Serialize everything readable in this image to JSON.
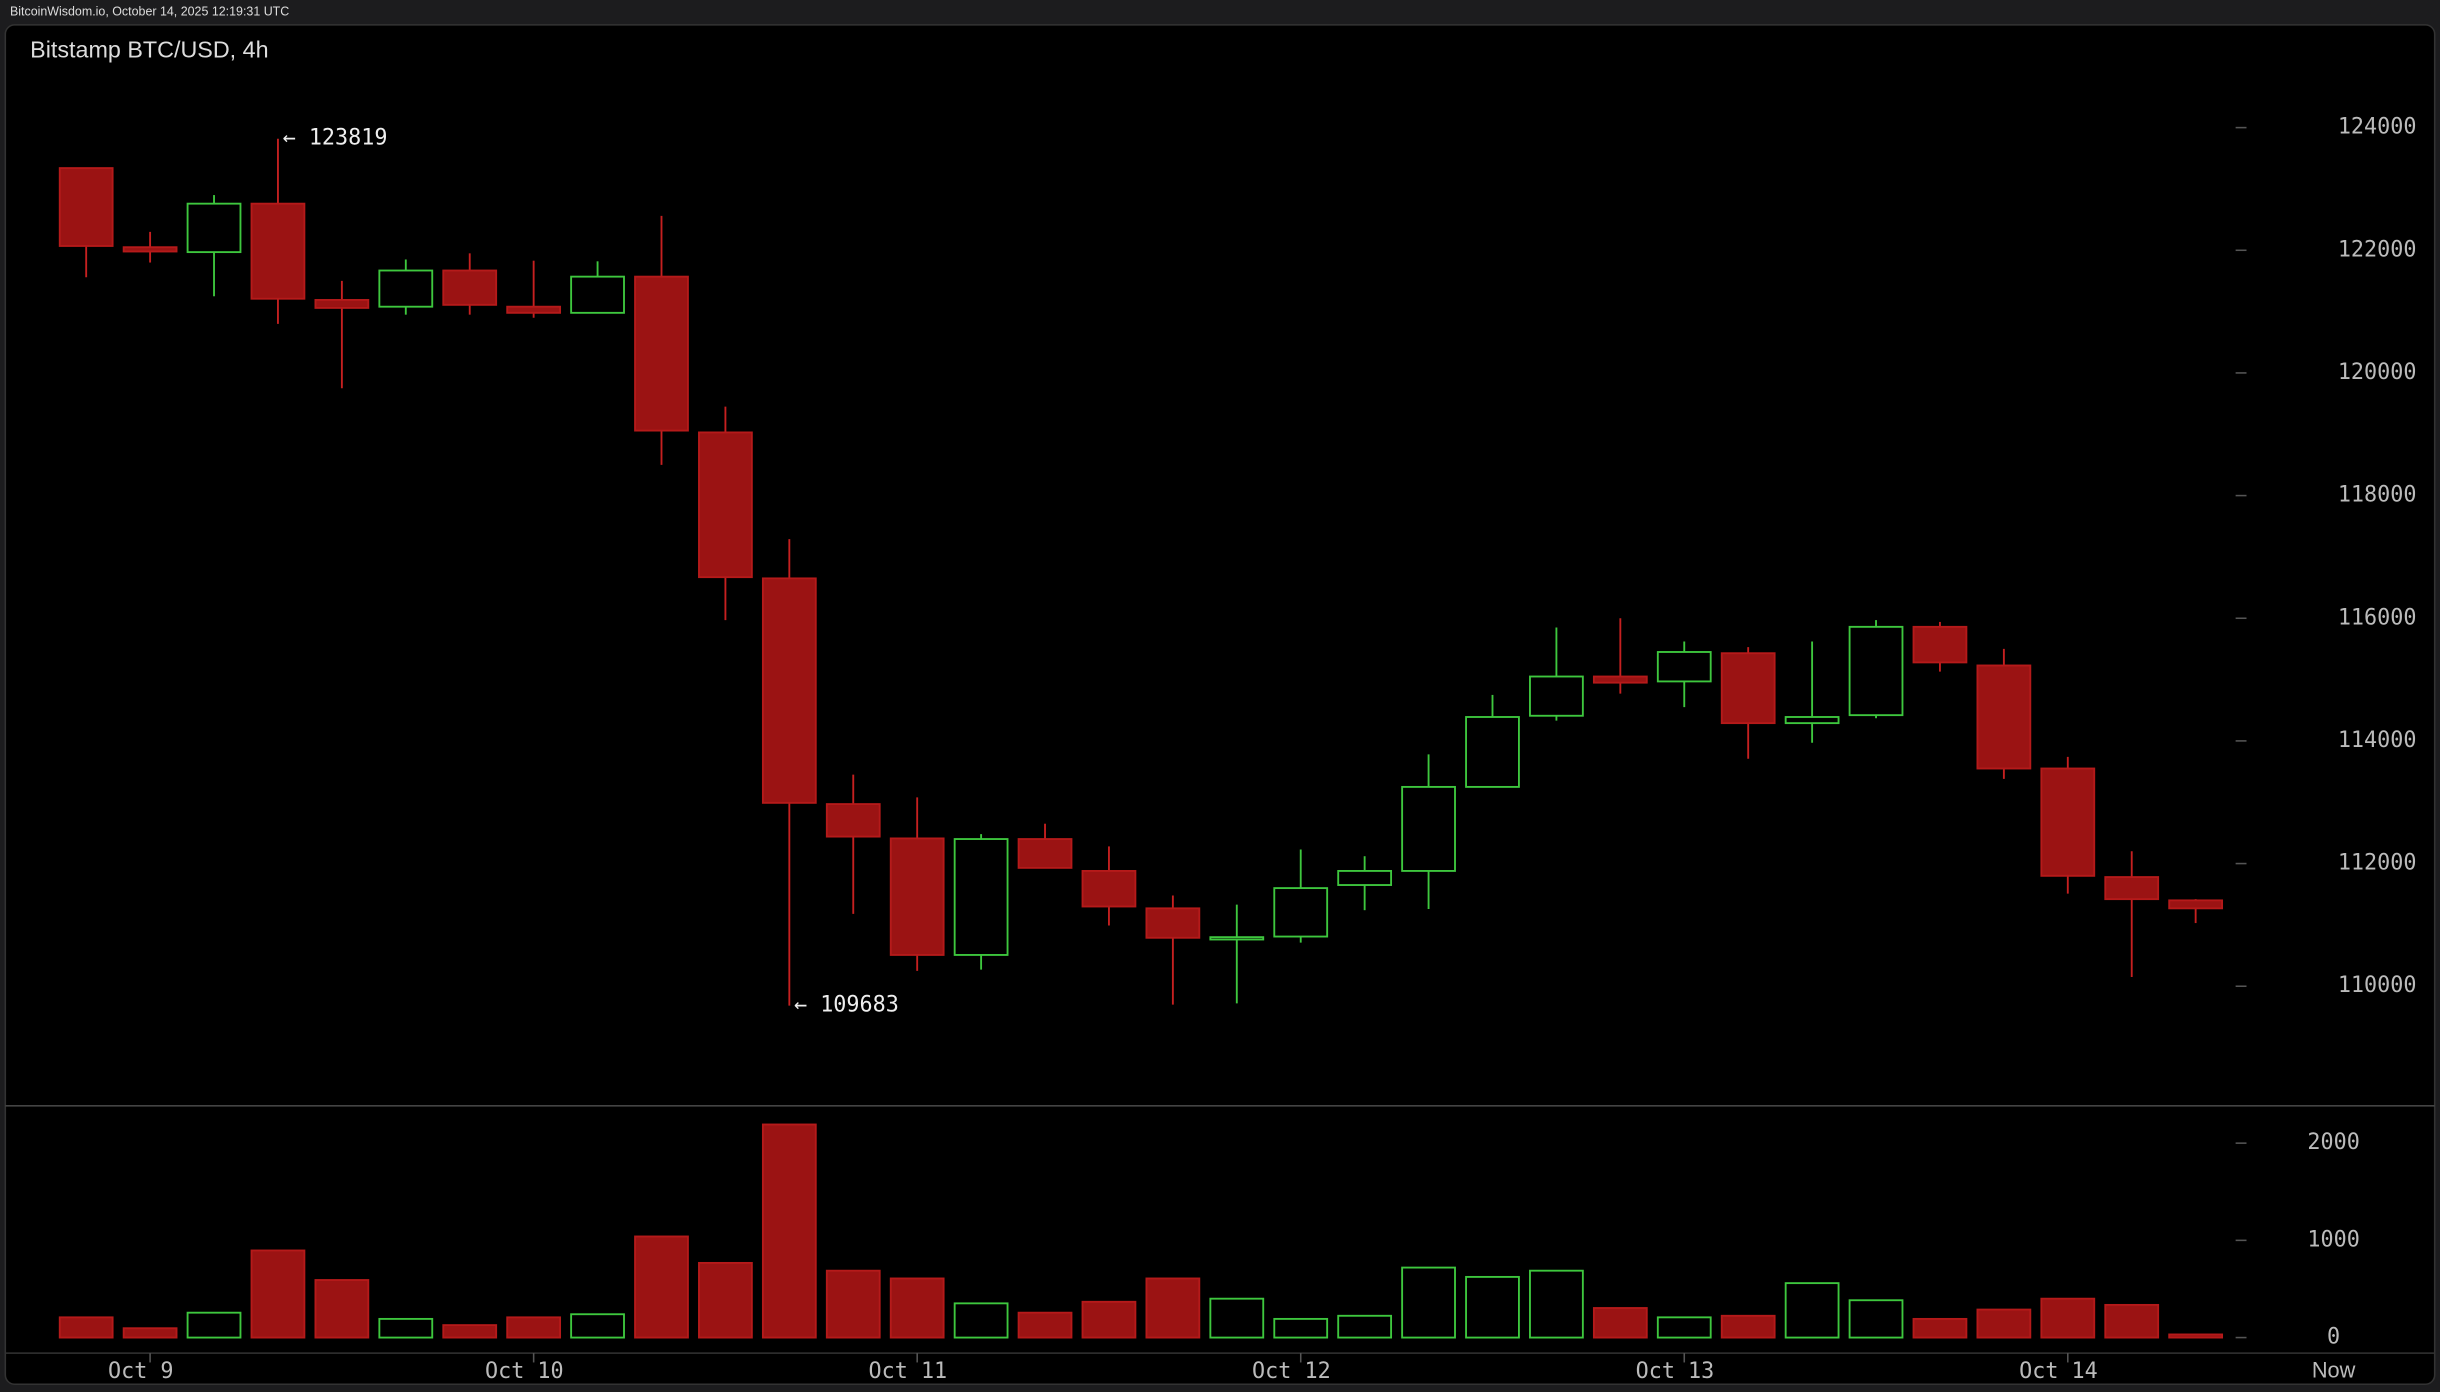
{
  "header": "BitcoinWisdom.io, October 14, 2025 12:19:31 UTC",
  "chart_data": {
    "type": "candlestick",
    "title": "Bitstamp BTC/USD, 4h",
    "categories": [
      null,
      "Oct 9",
      null,
      null,
      null,
      null,
      null,
      "Oct 10",
      null,
      null,
      null,
      null,
      null,
      "Oct 11",
      null,
      null,
      null,
      null,
      null,
      "Oct 12",
      null,
      null,
      null,
      null,
      null,
      "Oct 13",
      null,
      null,
      null,
      null,
      null,
      "Oct 14",
      null,
      null
    ],
    "end_label": "Now",
    "open": [
      123340,
      122050,
      121970,
      122760,
      121190,
      121080,
      121670,
      121080,
      120980,
      121570,
      119030,
      116650,
      112970,
      112410,
      110510,
      112400,
      111880,
      111270,
      110790,
      110810,
      111650,
      111880,
      113250,
      114410,
      115050,
      114970,
      115430,
      114290,
      114420,
      115860,
      115230,
      113550,
      111780,
      111400
    ],
    "high": [
      123340,
      122300,
      122900,
      123819,
      121500,
      121850,
      121950,
      121830,
      121820,
      122560,
      119450,
      117290,
      113450,
      113080,
      112480,
      112650,
      112280,
      111480,
      111330,
      112230,
      112120,
      113780,
      114750,
      115850,
      116000,
      115620,
      115530,
      115620,
      115970,
      115940,
      115500,
      113740,
      112200,
      111420
    ],
    "low": [
      121560,
      121800,
      121250,
      120800,
      119750,
      120950,
      120950,
      120900,
      120980,
      118500,
      115970,
      109683,
      111180,
      110250,
      110270,
      111930,
      110990,
      109700,
      109720,
      110710,
      111240,
      111260,
      113250,
      114330,
      114770,
      114550,
      113710,
      113970,
      114370,
      115130,
      113380,
      111510,
      110150,
      111030
    ],
    "close": [
      122070,
      121980,
      122760,
      121210,
      121060,
      121670,
      121110,
      120980,
      121570,
      119060,
      116670,
      112990,
      112440,
      110510,
      112400,
      111930,
      111300,
      110790,
      110800,
      111600,
      111880,
      113250,
      114390,
      115050,
      114950,
      115450,
      114290,
      114390,
      115860,
      115280,
      113550,
      111800,
      111420,
      111270
    ],
    "volume": [
      208,
      96,
      256,
      896,
      592,
      192,
      128,
      208,
      240,
      1040,
      768,
      2192,
      688,
      608,
      352,
      256,
      368,
      608,
      400,
      192,
      224,
      720,
      624,
      688,
      304,
      208,
      224,
      560,
      384,
      192,
      288,
      400,
      336,
      32
    ],
    "up_color": "#3ec73e",
    "down_color": "#9b1313",
    "ylim": [
      108050,
      125675
    ],
    "yticks": [
      110000,
      112000,
      114000,
      116000,
      118000,
      120000,
      122000,
      124000
    ],
    "volume_ylim": [
      -160,
      2384
    ],
    "volume_ticks": [
      0,
      1000,
      2000
    ],
    "annotations": [
      {
        "text": "← 123819",
        "value": 123819
      },
      {
        "text": "← 109683",
        "value": 109683
      }
    ]
  }
}
